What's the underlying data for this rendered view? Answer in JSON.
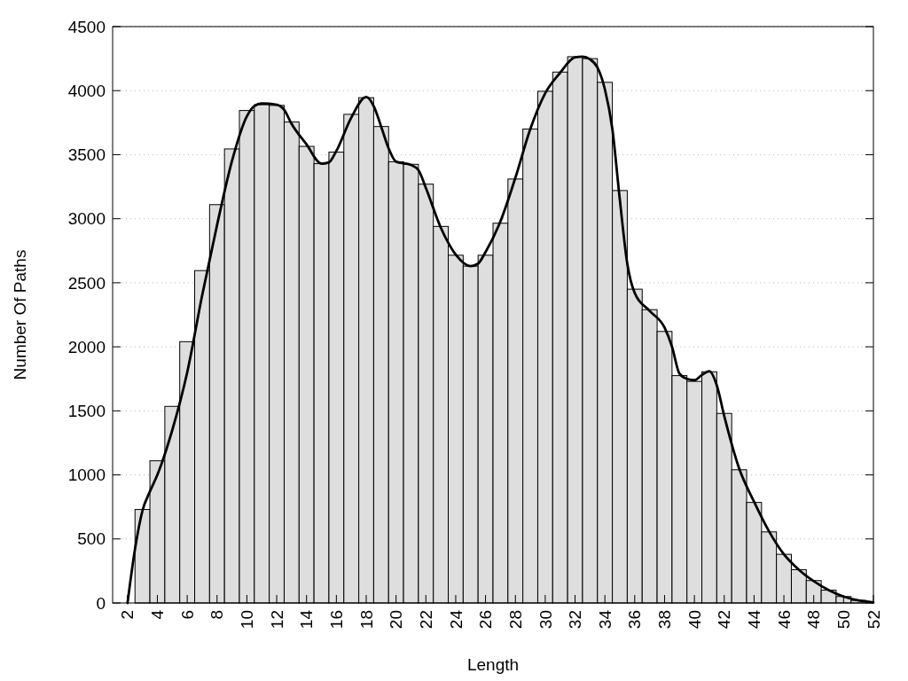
{
  "chart_data": {
    "type": "histogram",
    "xlabel": "Length",
    "ylabel": "Number Of Paths",
    "xlim": [
      1,
      52
    ],
    "ylim": [
      0,
      4500
    ],
    "xticks": [
      2,
      4,
      6,
      8,
      10,
      12,
      14,
      16,
      18,
      20,
      22,
      24,
      26,
      28,
      30,
      32,
      34,
      36,
      38,
      40,
      42,
      44,
      46,
      48,
      50,
      52
    ],
    "yticks": [
      0,
      500,
      1000,
      1500,
      2000,
      2500,
      3000,
      3500,
      4000,
      4500
    ],
    "grid": "y",
    "series": [
      {
        "color": "#dedede",
        "bins": [
          2.5,
          3.5,
          4.5,
          5.5,
          6.5,
          7.5,
          8.5,
          9.5,
          10.5,
          11.5,
          12.5,
          13.5,
          14.5,
          15.5,
          16.5,
          17.5,
          18.5,
          19.5,
          20.5,
          21.5,
          22.5,
          23.5,
          24.5,
          25.5,
          26.5,
          27.5,
          28.5,
          29.5,
          30.5,
          31.5,
          32.5,
          33.5,
          34.5,
          35.5,
          36.5,
          37.5,
          38.5,
          39.5,
          40.5,
          41.5,
          42.5,
          43.5,
          44.5,
          45.5,
          46.5,
          47.5,
          48.5,
          49.5,
          50.5,
          51.5
        ],
        "values": [
          730,
          1110,
          1535,
          2040,
          2595,
          3110,
          3545,
          3845,
          3890,
          3885,
          3755,
          3565,
          3430,
          3520,
          3815,
          3945,
          3720,
          3445,
          3425,
          3270,
          2940,
          2715,
          2630,
          2715,
          2965,
          3310,
          3700,
          3995,
          4145,
          4265,
          4250,
          4065,
          3220,
          2450,
          2290,
          2120,
          1775,
          1730,
          1805,
          1480,
          1040,
          785,
          555,
          380,
          260,
          175,
          100,
          50,
          20
        ]
      },
      {
        "type": "line",
        "color": "#000000",
        "x": [
          2,
          2.5,
          3,
          3.5,
          4,
          5,
          6,
          7,
          8,
          9,
          10,
          10.5,
          11,
          12,
          12.5,
          13,
          14,
          15,
          15.5,
          16,
          17,
          18,
          18.5,
          19,
          19.5,
          20,
          21,
          21.5,
          22,
          23,
          24,
          25,
          25.5,
          26,
          27,
          28,
          29,
          30,
          31,
          32,
          32.5,
          33,
          33.5,
          34,
          34.5,
          35,
          35.5,
          36,
          37,
          38,
          38.5,
          39,
          39.5,
          40,
          40.5,
          41,
          41.5,
          42,
          43,
          44,
          45,
          46,
          47,
          48,
          49,
          50,
          51,
          52
        ],
        "values": [
          0,
          420,
          720,
          870,
          1000,
          1350,
          1800,
          2400,
          2950,
          3450,
          3800,
          3880,
          3900,
          3890,
          3850,
          3740,
          3580,
          3430,
          3440,
          3530,
          3790,
          3950,
          3880,
          3720,
          3550,
          3445,
          3420,
          3380,
          3240,
          2930,
          2720,
          2630,
          2650,
          2740,
          2980,
          3320,
          3700,
          3980,
          4140,
          4260,
          4265,
          4245,
          4180,
          4010,
          3700,
          3150,
          2650,
          2420,
          2280,
          2150,
          2000,
          1790,
          1750,
          1740,
          1780,
          1810,
          1700,
          1460,
          1050,
          790,
          560,
          380,
          260,
          170,
          100,
          50,
          20,
          5
        ]
      }
    ]
  }
}
